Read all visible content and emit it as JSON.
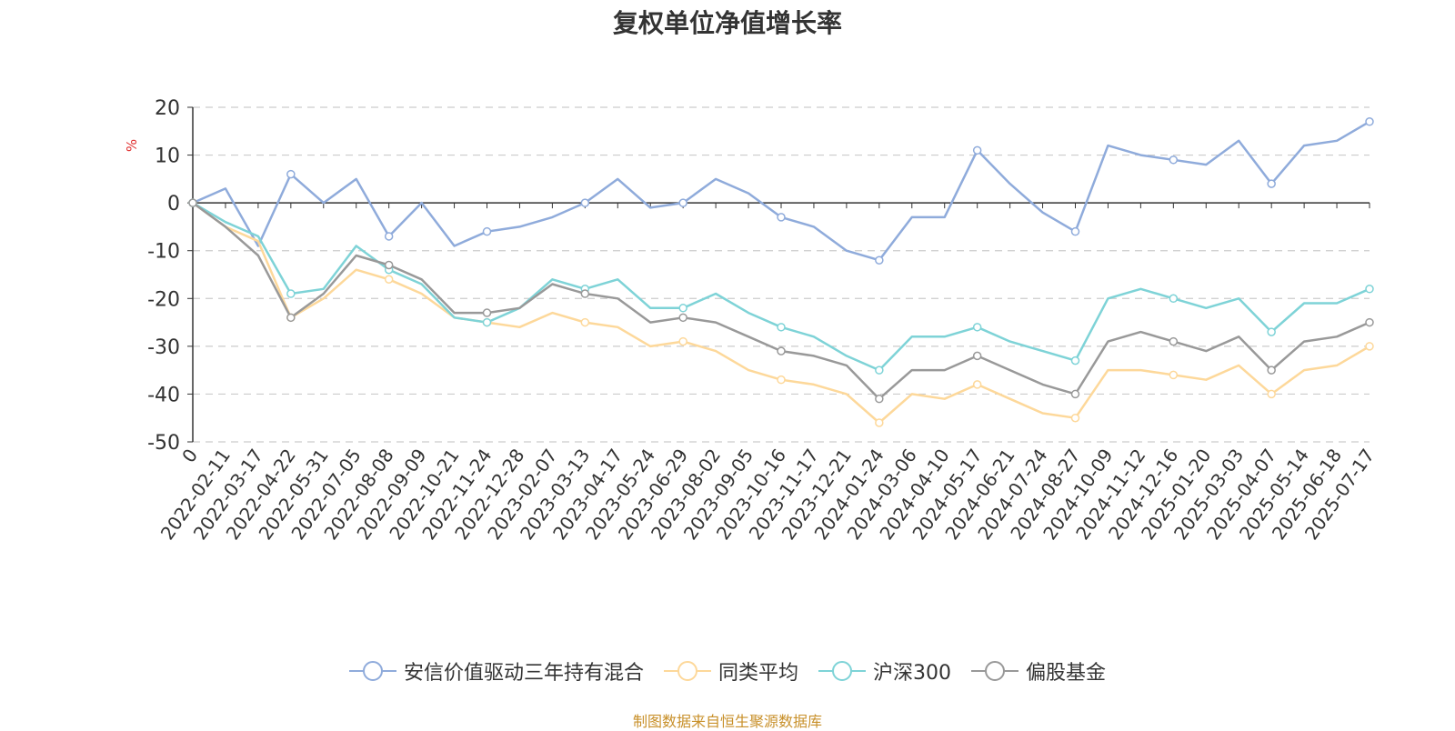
{
  "chart_data": {
    "type": "line",
    "title": "复权单位净值增长率",
    "ylabel": "%",
    "ylim": [
      -50,
      20
    ],
    "yticks": [
      "20",
      "10",
      "0",
      "-10",
      "-20",
      "-30",
      "-40",
      "-50"
    ],
    "xlabels": [
      "0",
      "2022-02-11",
      "2022-03-17",
      "2022-04-22",
      "2022-05-31",
      "2022-07-05",
      "2022-08-08",
      "2022-09-09",
      "2022-10-21",
      "2022-11-24",
      "2022-12-28",
      "2023-02-07",
      "2023-03-13",
      "2023-04-17",
      "2023-05-24",
      "2023-06-29",
      "2023-08-02",
      "2023-09-05",
      "2023-10-16",
      "2023-11-17",
      "2023-12-21",
      "2024-01-24",
      "2024-03-06",
      "2024-04-10",
      "2024-05-17",
      "2024-06-21",
      "2024-07-24",
      "2024-08-27",
      "2024-10-09",
      "2024-11-12",
      "2024-12-16",
      "2025-01-20",
      "2025-03-03",
      "2025-04-07",
      "2025-05-14",
      "2025-06-18",
      "2025-07-17"
    ],
    "grid": true,
    "legend_position": "bottom",
    "series": [
      {
        "name": "安信价值驱动三年持有混合",
        "color": "#8fabdb",
        "values": [
          0,
          3,
          -9,
          6,
          0,
          5,
          -7,
          0,
          -9,
          -6,
          -5,
          -3,
          0,
          5,
          -1,
          0,
          5,
          2,
          -3,
          -5,
          -10,
          -12,
          -3,
          -3,
          11,
          4,
          -2,
          -6,
          12,
          10,
          9,
          8,
          13,
          4,
          12,
          13,
          17
        ]
      },
      {
        "name": "同类平均",
        "color": "#fdd89a",
        "values": [
          0,
          -5,
          -8,
          -24,
          -20,
          -14,
          -16,
          -19,
          -24,
          -25,
          -26,
          -23,
          -25,
          -26,
          -30,
          -29,
          -31,
          -35,
          -37,
          -38,
          -40,
          -46,
          -40,
          -41,
          -38,
          -41,
          -44,
          -45,
          -35,
          -35,
          -36,
          -37,
          -34,
          -40,
          -35,
          -34,
          -30
        ]
      },
      {
        "name": "沪深300",
        "color": "#7ed3d7",
        "values": [
          0,
          -4,
          -7,
          -19,
          -18,
          -9,
          -14,
          -17,
          -24,
          -25,
          -22,
          -16,
          -18,
          -16,
          -22,
          -22,
          -19,
          -23,
          -26,
          -28,
          -32,
          -35,
          -28,
          -28,
          -26,
          -29,
          -31,
          -33,
          -20,
          -18,
          -20,
          -22,
          -20,
          -27,
          -21,
          -21,
          -18
        ]
      },
      {
        "name": "偏股基金",
        "color": "#999999",
        "values": [
          0,
          -5,
          -11,
          -24,
          -19,
          -11,
          -13,
          -16,
          -23,
          -23,
          -22,
          -17,
          -19,
          -20,
          -25,
          -24,
          -25,
          -28,
          -31,
          -32,
          -34,
          -41,
          -35,
          -35,
          -32,
          -35,
          -38,
          -40,
          -29,
          -27,
          -29,
          -31,
          -28,
          -35,
          -29,
          -28,
          -25
        ]
      }
    ]
  },
  "source_note": "制图数据来自恒生聚源数据库"
}
